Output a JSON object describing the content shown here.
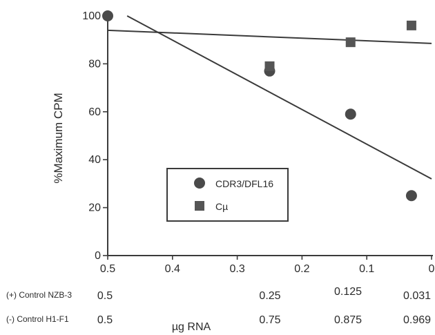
{
  "chart_data": {
    "type": "scatter",
    "x_axis": {
      "range": [
        0.5,
        0
      ],
      "ticks": [
        0.5,
        0.4,
        0.3,
        0.2,
        0.1,
        0
      ],
      "tick_labels": [
        "0.5",
        "0.4",
        "0.3",
        "0.2",
        "0.1",
        "0"
      ],
      "reversed": true
    },
    "y_axis": {
      "label": "%Maximum CPM",
      "range": [
        0,
        100
      ],
      "ticks": [
        0,
        20,
        40,
        60,
        80,
        100
      ],
      "tick_labels": [
        "0",
        "20",
        "40",
        "60",
        "80",
        "100"
      ]
    },
    "xlabel": "µg RNA",
    "series": [
      {
        "name": "CDR3/DFL16",
        "marker": "circle",
        "points": [
          {
            "x": 0.5,
            "y": 100
          },
          {
            "x": 0.25,
            "y": 77
          },
          {
            "x": 0.125,
            "y": 59
          },
          {
            "x": 0.031,
            "y": 25
          }
        ],
        "trendline": {
          "from": {
            "x": 0.47,
            "y": 100
          },
          "to": {
            "x": 0,
            "y": 32
          }
        }
      },
      {
        "name": "Cµ",
        "marker": "square",
        "points": [
          {
            "x": 0.25,
            "y": 79
          },
          {
            "x": 0.125,
            "y": 89
          },
          {
            "x": 0.031,
            "y": 96
          }
        ],
        "trendline": {
          "from": {
            "x": 0.5,
            "y": 94
          },
          "to": {
            "x": 0,
            "y": 88.5
          }
        }
      }
    ],
    "legend": {
      "position": "center-lower"
    },
    "grid": false,
    "dose_rows": [
      {
        "label": "(+) Control NZB-3",
        "values": [
          "0.5",
          "0.25",
          "0.125",
          "0.031"
        ],
        "x": [
          0.5,
          0.25,
          0.125,
          0.031
        ]
      },
      {
        "label": "(-) Control H1-F1",
        "values": [
          "0.5",
          "0.75",
          "0.875",
          "0.969"
        ],
        "x": [
          0.5,
          0.25,
          0.125,
          0.031
        ]
      }
    ]
  }
}
